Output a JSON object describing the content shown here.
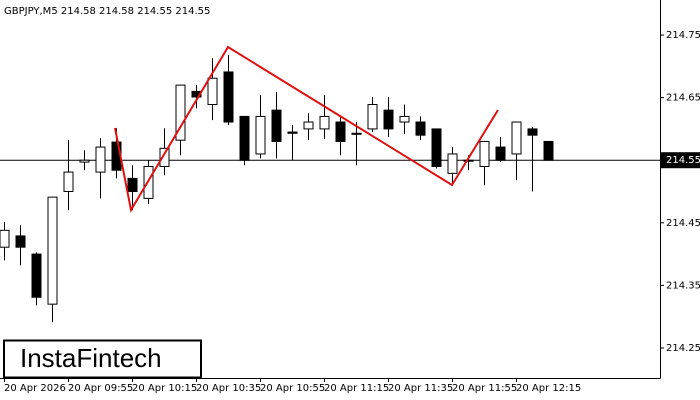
{
  "chart_data": {
    "type": "candlestick",
    "title": "GBPJPY,M5  214.58 214.58 214.55 214.55",
    "logo": "InstaFintech",
    "categories": [
      "20 Apr 2026",
      null,
      null,
      null,
      "20 Apr 09:55",
      null,
      null,
      null,
      "20 Apr 10:15",
      null,
      null,
      null,
      "20 Apr 10:35",
      null,
      null,
      null,
      "20 Apr 10:55",
      null,
      null,
      null,
      "20 Apr 11:15",
      null,
      null,
      null,
      "20 Apr 11:35",
      null,
      null,
      null,
      "20 Apr 11:55",
      null,
      null,
      null,
      "20 Apr 12:15",
      null,
      null
    ],
    "open": [
      214.411,
      214.429,
      214.4,
      214.32,
      214.5,
      214.547,
      214.531,
      214.579,
      214.521,
      214.489,
      214.54,
      214.582,
      214.66,
      214.639,
      214.691,
      214.62,
      214.56,
      214.63,
      214.595,
      214.6,
      214.6,
      214.611,
      214.593,
      214.6,
      214.63,
      214.611,
      214.611,
      214.6,
      214.529,
      214.55,
      214.54,
      214.571,
      214.56,
      214.6,
      214.58
    ],
    "high": [
      214.451,
      214.446,
      214.403,
      214.491,
      214.582,
      214.566,
      214.585,
      214.601,
      214.542,
      214.55,
      214.601,
      214.67,
      214.67,
      214.713,
      214.718,
      214.62,
      214.654,
      214.659,
      214.606,
      214.625,
      214.654,
      214.62,
      214.611,
      214.651,
      214.651,
      214.639,
      214.62,
      214.6,
      214.571,
      214.558,
      214.58,
      214.587,
      214.611,
      214.603,
      214.58
    ],
    "low": [
      214.39,
      214.382,
      214.318,
      214.291,
      214.47,
      214.534,
      214.489,
      214.521,
      214.47,
      214.48,
      214.526,
      214.558,
      214.633,
      214.614,
      214.606,
      214.542,
      214.553,
      214.553,
      214.55,
      214.582,
      214.584,
      214.558,
      214.542,
      214.595,
      214.587,
      214.592,
      214.582,
      214.537,
      214.51,
      214.534,
      214.51,
      214.547,
      214.518,
      214.5,
      214.55
    ],
    "close": [
      214.438,
      214.411,
      214.331,
      214.491,
      214.531,
      214.55,
      214.571,
      214.534,
      214.5,
      214.54,
      214.569,
      214.67,
      214.651,
      214.681,
      214.611,
      214.55,
      214.62,
      214.58,
      214.593,
      214.611,
      214.62,
      214.58,
      214.592,
      214.639,
      214.6,
      214.62,
      214.59,
      214.54,
      214.56,
      214.55,
      214.58,
      214.55,
      214.611,
      214.59,
      214.55
    ],
    "last_price": 214.55,
    "ylim": [
      214.202,
      214.806
    ],
    "yticks": [
      214.25,
      214.35,
      214.45,
      214.55,
      214.65,
      214.75
    ],
    "pattern_color": "#e01010"
  }
}
